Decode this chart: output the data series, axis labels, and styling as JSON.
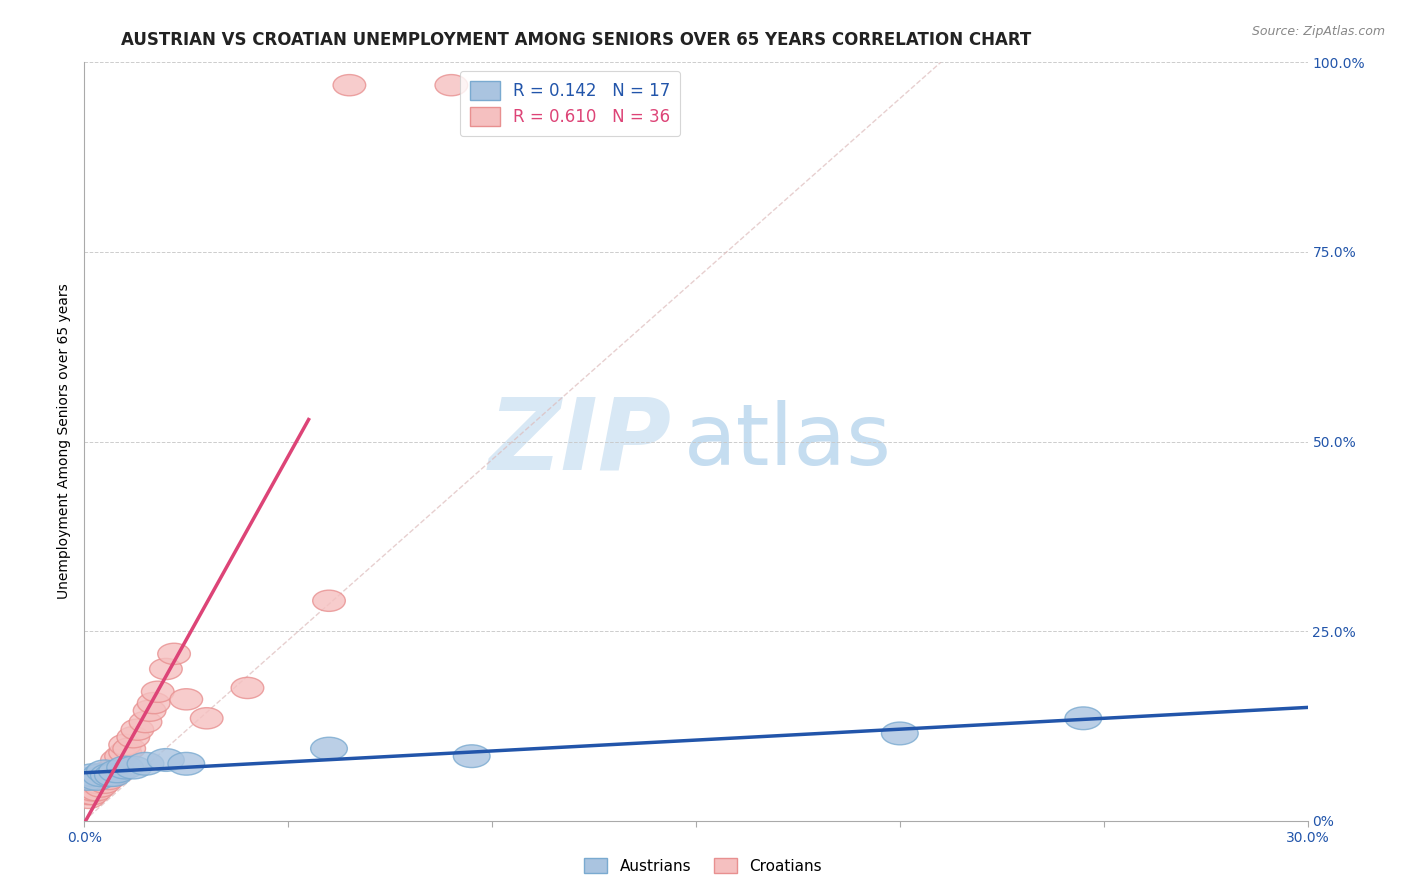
{
  "title": "AUSTRIAN VS CROATIAN UNEMPLOYMENT AMONG SENIORS OVER 65 YEARS CORRELATION CHART",
  "source": "Source: ZipAtlas.com",
  "ylabel": "Unemployment Among Seniors over 65 years",
  "xlim": [
    0.0,
    0.3
  ],
  "ylim": [
    0.0,
    1.0
  ],
  "xticks": [
    0.0,
    0.05,
    0.1,
    0.15,
    0.2,
    0.25,
    0.3
  ],
  "ytick_labels_right": [
    "0%",
    "25.0%",
    "50.0%",
    "75.0%",
    "100.0%"
  ],
  "yticks": [
    0.0,
    0.25,
    0.5,
    0.75,
    1.0
  ],
  "austrians": {
    "x": [
      0.001,
      0.002,
      0.003,
      0.004,
      0.005,
      0.006,
      0.007,
      0.008,
      0.01,
      0.012,
      0.015,
      0.02,
      0.025,
      0.06,
      0.095,
      0.2,
      0.245
    ],
    "y": [
      0.055,
      0.06,
      0.055,
      0.06,
      0.065,
      0.06,
      0.06,
      0.065,
      0.07,
      0.07,
      0.075,
      0.08,
      0.075,
      0.095,
      0.085,
      0.115,
      0.135
    ],
    "R": 0.142,
    "N": 17
  },
  "croatians": {
    "x": [
      0.001,
      0.001,
      0.001,
      0.001,
      0.002,
      0.002,
      0.002,
      0.003,
      0.003,
      0.004,
      0.004,
      0.005,
      0.005,
      0.006,
      0.006,
      0.007,
      0.008,
      0.008,
      0.009,
      0.01,
      0.01,
      0.011,
      0.012,
      0.013,
      0.015,
      0.016,
      0.017,
      0.018,
      0.02,
      0.022,
      0.025,
      0.03,
      0.04,
      0.06,
      0.065,
      0.09
    ],
    "y": [
      0.03,
      0.035,
      0.04,
      0.045,
      0.035,
      0.04,
      0.05,
      0.04,
      0.05,
      0.045,
      0.055,
      0.05,
      0.06,
      0.055,
      0.065,
      0.06,
      0.07,
      0.08,
      0.085,
      0.09,
      0.1,
      0.095,
      0.11,
      0.12,
      0.13,
      0.145,
      0.155,
      0.17,
      0.2,
      0.22,
      0.16,
      0.135,
      0.175,
      0.29,
      0.97,
      0.97
    ],
    "R": 0.61,
    "N": 36
  },
  "background_color": "#ffffff",
  "grid_color": "#c8c8c8",
  "watermark_zip_color": "#d8e8f5",
  "watermark_atlas_color": "#c5ddf0",
  "trend_blue_color": "#2255aa",
  "trend_pink_color": "#dd4477",
  "ref_line_color": "#ddbbbb",
  "blue_marker_face": "#aac4e0",
  "blue_marker_edge": "#7aaad0",
  "pink_marker_face": "#f5c0c0",
  "pink_marker_edge": "#e89090",
  "legend_blue_text": "#2255aa",
  "legend_pink_text": "#dd4477",
  "title_fontsize": 12,
  "axis_label_fontsize": 10,
  "tick_fontsize": 10,
  "source_fontsize": 9
}
